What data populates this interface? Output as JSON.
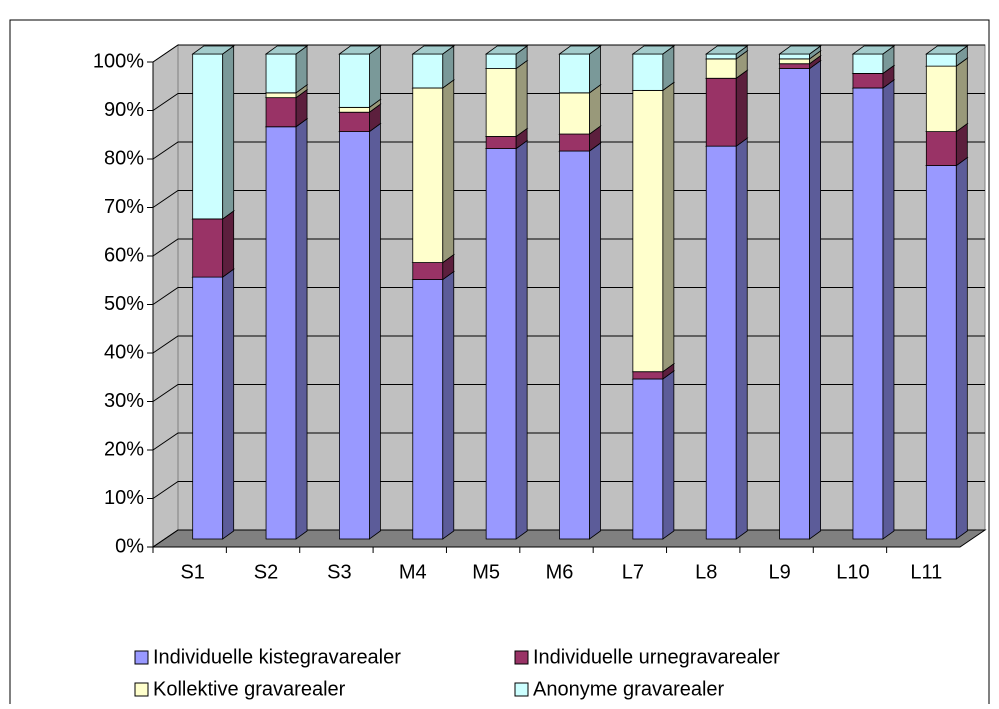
{
  "chart_data": {
    "type": "bar3d_stacked_percent",
    "categories": [
      "S1",
      "S2",
      "S3",
      "M4",
      "M5",
      "M6",
      "L7",
      "L8",
      "L9",
      "L10",
      "L11"
    ],
    "series": [
      {
        "name": "Individuelle kistegravarealer",
        "color": "#9999ff",
        "values": [
          54,
          85,
          84,
          53.5,
          80.5,
          80,
          33,
          81,
          97,
          93,
          77
        ]
      },
      {
        "name": "Individuelle urnegravarealer",
        "color": "#993366",
        "values": [
          12,
          6,
          4,
          3.5,
          2.5,
          3.5,
          1.5,
          14,
          1,
          3,
          7
        ]
      },
      {
        "name": "Kollektive gravarealer",
        "color": "#ffffcc",
        "values": [
          0,
          1,
          1,
          36,
          14,
          8.5,
          58,
          4,
          1,
          0,
          13.5
        ]
      },
      {
        "name": "Anonyme gravarealer",
        "color": "#ccffff",
        "values": [
          34,
          8,
          11,
          7,
          3,
          8,
          7.5,
          1,
          1,
          4,
          2.5
        ]
      }
    ],
    "ylim": [
      0,
      100
    ],
    "yticks": [
      {
        "value": 0,
        "label": "0%"
      },
      {
        "value": 10,
        "label": "10%"
      },
      {
        "value": 20,
        "label": "20%"
      },
      {
        "value": 30,
        "label": "30%"
      },
      {
        "value": 40,
        "label": "40%"
      },
      {
        "value": 50,
        "label": "50%"
      },
      {
        "value": 60,
        "label": "60%"
      },
      {
        "value": 70,
        "label": "70%"
      },
      {
        "value": 80,
        "label": "80%"
      },
      {
        "value": 90,
        "label": "90%"
      },
      {
        "value": 100,
        "label": "100%"
      }
    ],
    "grid": true,
    "legend": "bottom"
  }
}
